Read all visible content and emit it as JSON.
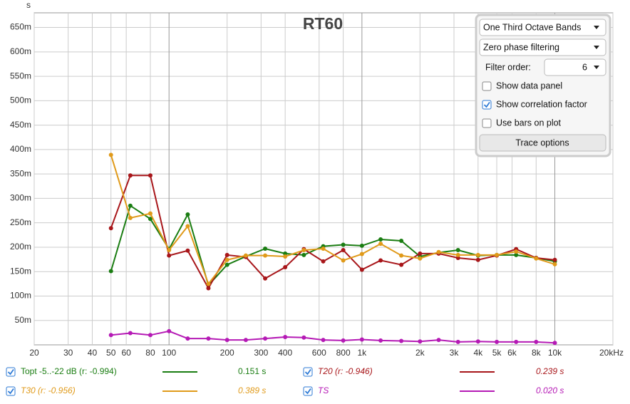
{
  "chart_data": {
    "type": "line",
    "title": "RT60",
    "ylabel": "s",
    "log_x": true,
    "grid": true,
    "x": [
      50,
      63,
      80,
      100,
      125,
      160,
      200,
      250,
      315,
      400,
      500,
      630,
      800,
      1000,
      1250,
      1600,
      2000,
      2500,
      3150,
      4000,
      5000,
      6300,
      8000,
      10000
    ],
    "xlim": [
      20,
      20000
    ],
    "xticks": [
      20,
      30,
      40,
      50,
      60,
      80,
      100,
      200,
      300,
      400,
      600,
      800,
      {
        "value": 1000,
        "label": "1k"
      },
      {
        "value": 2000,
        "label": "2k"
      },
      {
        "value": 3000,
        "label": "3k"
      },
      {
        "value": 4000,
        "label": "4k"
      },
      {
        "value": 5000,
        "label": "5k"
      },
      {
        "value": 6000,
        "label": "6k"
      },
      {
        "value": 8000,
        "label": "8k"
      },
      {
        "value": 10000,
        "label": "10k"
      },
      {
        "value": 20000,
        "label": "20kHz"
      }
    ],
    "ylim": [
      0,
      0.68
    ],
    "yticks": [
      {
        "value": 0.05,
        "label": "50m"
      },
      {
        "value": 0.1,
        "label": "100m"
      },
      {
        "value": 0.15,
        "label": "150m"
      },
      {
        "value": 0.2,
        "label": "200m"
      },
      {
        "value": 0.25,
        "label": "250m"
      },
      {
        "value": 0.3,
        "label": "300m"
      },
      {
        "value": 0.35,
        "label": "350m"
      },
      {
        "value": 0.4,
        "label": "400m"
      },
      {
        "value": 0.45,
        "label": "450m"
      },
      {
        "value": 0.5,
        "label": "500m"
      },
      {
        "value": 0.55,
        "label": "550m"
      },
      {
        "value": 0.6,
        "label": "600m"
      },
      {
        "value": 0.65,
        "label": "650m"
      }
    ],
    "series": [
      {
        "name": "Topt -5..-22 dB (r: -0.994)",
        "color": "#1a7d12",
        "value_label": "0.151 s",
        "values": [
          0.151,
          0.285,
          0.258,
          0.196,
          0.267,
          0.122,
          0.164,
          0.181,
          0.197,
          0.187,
          0.184,
          0.202,
          0.205,
          0.203,
          0.216,
          0.213,
          0.181,
          0.189,
          0.194,
          0.183,
          0.184,
          0.184,
          0.178,
          0.171
        ]
      },
      {
        "name": "T20 (r: -0.946)",
        "color": "#a8161a",
        "value_label": "0.239 s",
        "values": [
          0.239,
          0.347,
          0.347,
          0.183,
          0.193,
          0.116,
          0.184,
          0.18,
          0.136,
          0.159,
          0.196,
          0.171,
          0.194,
          0.154,
          0.173,
          0.164,
          0.187,
          0.187,
          0.178,
          0.174,
          0.183,
          0.196,
          0.178,
          0.174
        ]
      },
      {
        "name": "T30 (r: -0.956)",
        "color": "#e09a1a",
        "value_label": "0.389 s",
        "values": [
          0.389,
          0.26,
          0.269,
          0.194,
          0.243,
          0.125,
          0.174,
          0.183,
          0.183,
          0.181,
          0.194,
          0.197,
          0.173,
          0.186,
          0.207,
          0.183,
          0.177,
          0.19,
          0.184,
          0.184,
          0.184,
          0.191,
          0.177,
          0.165
        ]
      },
      {
        "name": "TS",
        "color": "#b51ab5",
        "value_label": "0.020 s",
        "values": [
          0.02,
          0.024,
          0.02,
          0.028,
          0.013,
          0.013,
          0.01,
          0.01,
          0.013,
          0.016,
          0.015,
          0.01,
          0.009,
          0.011,
          0.009,
          0.008,
          0.007,
          0.01,
          0.006,
          0.007,
          0.006,
          0.006,
          0.006,
          0.004
        ]
      }
    ]
  },
  "controls": {
    "band_select": "One Third Octave Bands",
    "filter_select": "Zero phase filtering",
    "filter_order_label": "Filter order:",
    "filter_order": "6",
    "checkboxes": [
      {
        "label": "Show data panel",
        "checked": false
      },
      {
        "label": "Show correlation factor",
        "checked": true
      },
      {
        "label": "Use bars on plot",
        "checked": false
      }
    ],
    "button": "Trace options"
  }
}
